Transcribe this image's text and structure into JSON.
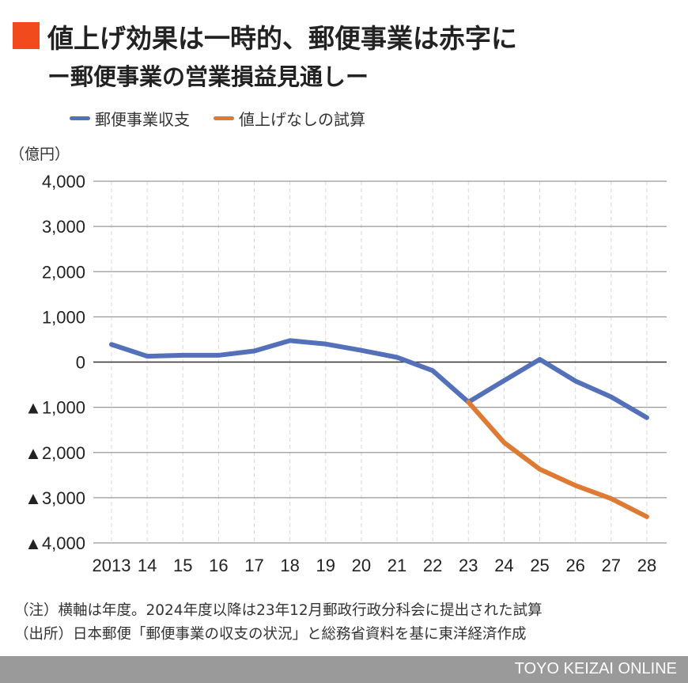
{
  "title": {
    "line1": "値上げ効果は一時的、郵便事業は赤字に",
    "line2": "ー郵便事業の営業損益見通しー",
    "accent": "#f04a1d"
  },
  "chart_data": {
    "type": "line",
    "unit": "（億円）",
    "categories": [
      "2013",
      "14",
      "15",
      "16",
      "17",
      "18",
      "19",
      "20",
      "21",
      "22",
      "23",
      "24",
      "25",
      "26",
      "27",
      "28"
    ],
    "ylim": [
      -4000,
      4000
    ],
    "yticks": [
      {
        "v": 4000,
        "label": "4,000"
      },
      {
        "v": 3000,
        "label": "3,000"
      },
      {
        "v": 2000,
        "label": "2,000"
      },
      {
        "v": 1000,
        "label": "1,000"
      },
      {
        "v": 0,
        "label": "0"
      },
      {
        "v": -1000,
        "label": "▲1,000"
      },
      {
        "v": -2000,
        "label": "▲2,000"
      },
      {
        "v": -3000,
        "label": "▲3,000"
      },
      {
        "v": -4000,
        "label": "▲4,000"
      }
    ],
    "grid": true,
    "legend_position": "top",
    "series": [
      {
        "name": "郵便事業収支",
        "color": "#5470b8",
        "values": [
          390,
          130,
          150,
          150,
          245,
          475,
          400,
          260,
          105,
          -190,
          -885,
          -410,
          60,
          -420,
          -770,
          -1230
        ]
      },
      {
        "name": "値上げなしの試算",
        "color": "#dd7a34",
        "values": [
          null,
          null,
          null,
          null,
          null,
          null,
          null,
          null,
          null,
          null,
          -885,
          -1780,
          -2370,
          -2730,
          -3020,
          -3420
        ]
      }
    ]
  },
  "notes": [
    "（注）横軸は年度。2024年度以降は23年12月郵政行政分科会に提出された試算",
    "（出所）日本郵便「郵便事業の収支の状況」と総務省資料を基に東洋経済作成"
  ],
  "footer": "TOYO KEIZAI ONLINE"
}
